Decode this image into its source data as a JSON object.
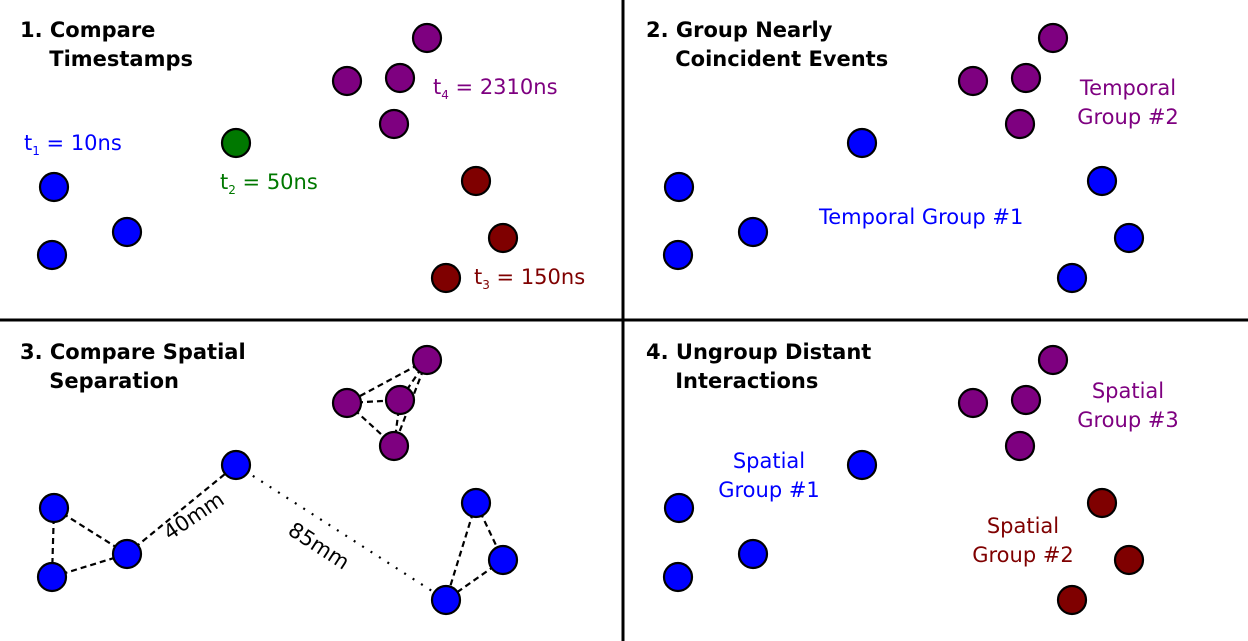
{
  "colors": {
    "blue": "#0000ff",
    "green": "#007800",
    "purple": "#7e0080",
    "darkred": "#7f0000",
    "stroke": "#000000",
    "divider": "#000000"
  },
  "panels": [
    {
      "id": "p1",
      "title": "1. Compare\n    Timestamps",
      "labels": [
        {
          "name": "t1-label",
          "base": "t",
          "sub": "1",
          "rest": " = 10ns",
          "color": "blue"
        },
        {
          "name": "t2-label",
          "base": "t",
          "sub": "2",
          "rest": " = 50ns",
          "color": "green"
        },
        {
          "name": "t3-label",
          "base": "t",
          "sub": "3",
          "rest": " = 150ns",
          "color": "darkred"
        },
        {
          "name": "t4-label",
          "base": "t",
          "sub": "4",
          "rest": " = 2310ns",
          "color": "purple"
        }
      ]
    },
    {
      "id": "p2",
      "title": "2. Group Nearly\n    Coincident Events",
      "labels": [
        {
          "name": "temporal-group-1-label",
          "text": "Temporal Group #1",
          "color": "blue"
        },
        {
          "name": "temporal-group-2-label",
          "text": "Temporal\nGroup #2",
          "color": "purple"
        }
      ]
    },
    {
      "id": "p3",
      "title": "3. Compare Spatial\n    Separation",
      "labels": [
        {
          "name": "distance-40mm-label",
          "text": "40mm",
          "color": "stroke"
        },
        {
          "name": "distance-85mm-label",
          "text": "85mm",
          "color": "stroke"
        }
      ]
    },
    {
      "id": "p4",
      "title": "4. Ungroup Distant\n    Interactions",
      "labels": [
        {
          "name": "spatial-group-1-label",
          "text": "Spatial\nGroup #1",
          "color": "blue"
        },
        {
          "name": "spatial-group-2-label",
          "text": "Spatial\nGroup #2",
          "color": "darkred"
        },
        {
          "name": "spatial-group-3-label",
          "text": "Spatial\nGroup #3",
          "color": "purple"
        }
      ]
    }
  ]
}
